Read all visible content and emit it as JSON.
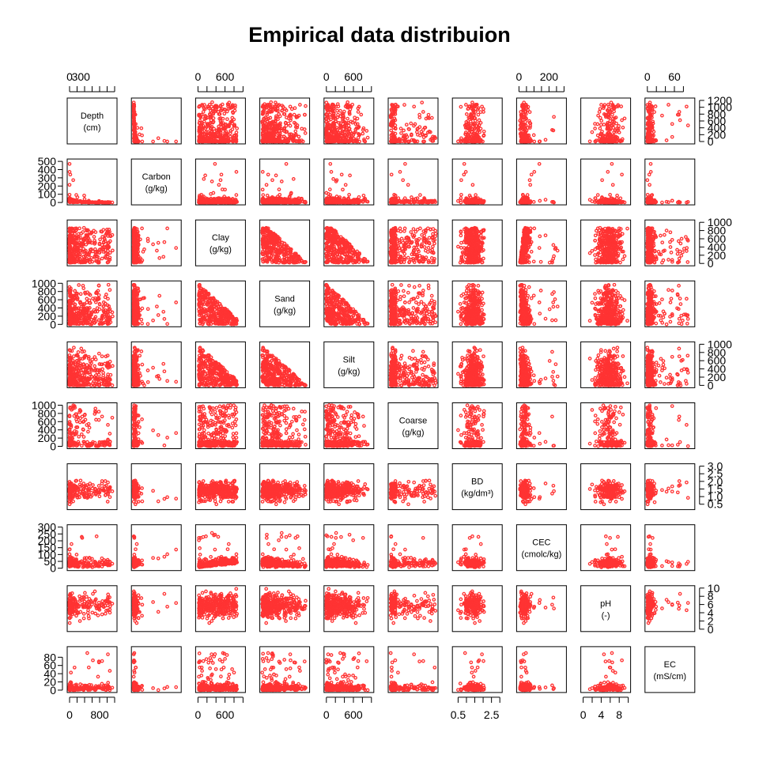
{
  "chart_data": {
    "type": "scatter",
    "title": "Empirical data distribuion",
    "point_color": "#FF3333",
    "variables": [
      {
        "name": "Depth",
        "unit": "(cm)",
        "range": [
          0,
          1200
        ],
        "ticks": [
          0,
          200,
          400,
          600,
          800,
          1000,
          1200
        ],
        "tick_labels_top": [
          "0",
          "300"
        ],
        "tick_values_top": [
          0,
          300
        ],
        "tick_labels_bottom": [
          "0",
          "800"
        ],
        "tick_values_bottom": [
          0,
          800
        ],
        "tick_labels_side": [
          "0",
          "200",
          "400",
          "600",
          "800",
          "1000",
          "1200"
        ]
      },
      {
        "name": "Carbon",
        "unit": "(g/kg)",
        "range": [
          0,
          500
        ],
        "ticks": [
          0,
          100,
          200,
          300,
          400,
          500
        ],
        "tick_labels_side": [
          "0",
          "100",
          "200",
          "300",
          "400",
          "500"
        ]
      },
      {
        "name": "Clay",
        "unit": "(g/kg)",
        "range": [
          0,
          1000
        ],
        "ticks": [
          0,
          200,
          400,
          600,
          800,
          1000
        ],
        "tick_labels_top": [
          "0",
          "600"
        ],
        "tick_values_top": [
          0,
          600
        ],
        "tick_labels_bottom": [
          "0",
          "600"
        ],
        "tick_values_bottom": [
          0,
          600
        ],
        "tick_labels_side": [
          "0",
          "200",
          "400",
          "600",
          "800",
          "1000"
        ]
      },
      {
        "name": "Sand",
        "unit": "(g/kg)",
        "range": [
          0,
          1000
        ],
        "ticks": [
          0,
          200,
          400,
          600,
          800,
          1000
        ],
        "tick_labels_side": [
          "0",
          "200",
          "400",
          "600",
          "800",
          "1000"
        ]
      },
      {
        "name": "Silt",
        "unit": "(g/kg)",
        "range": [
          0,
          1000
        ],
        "ticks": [
          0,
          200,
          400,
          600,
          800,
          1000
        ],
        "tick_labels_top": [
          "0",
          "600"
        ],
        "tick_values_top": [
          0,
          600
        ],
        "tick_labels_bottom": [
          "0",
          "600"
        ],
        "tick_values_bottom": [
          0,
          600
        ],
        "tick_labels_side": [
          "0",
          "200",
          "400",
          "600",
          "800",
          "1000"
        ]
      },
      {
        "name": "Coarse",
        "unit": "(g/kg)",
        "range": [
          0,
          1000
        ],
        "ticks": [
          0,
          200,
          400,
          600,
          800,
          1000
        ],
        "tick_labels_side": [
          "0",
          "200",
          "400",
          "600",
          "800",
          "1000"
        ]
      },
      {
        "name": "BD",
        "unit": "(kg/dm³)",
        "range": [
          0.3,
          3.0
        ],
        "ticks": [
          0.5,
          1.0,
          1.5,
          2.0,
          2.5,
          3.0
        ],
        "tick_labels_bottom": [
          "0.5",
          "2.5"
        ],
        "tick_values_bottom": [
          0.5,
          2.5
        ],
        "tick_labels_side": [
          "0.5",
          "1.0",
          "1.5",
          "2.0",
          "2.5",
          "3.0"
        ]
      },
      {
        "name": "CEC",
        "unit": "(cmolc/kg)",
        "range": [
          0,
          300
        ],
        "ticks": [
          0,
          50,
          100,
          150,
          200,
          250,
          300
        ],
        "tick_labels_top": [
          "0",
          "200"
        ],
        "tick_values_top": [
          0,
          200
        ],
        "tick_labels_side": [
          "0",
          "50",
          "100",
          "150",
          "200",
          "250",
          "300"
        ]
      },
      {
        "name": "pH",
        "unit": "(-)",
        "range": [
          0,
          10
        ],
        "ticks": [
          0,
          2,
          4,
          6,
          8,
          10
        ],
        "tick_labels_bottom": [
          "0",
          "4",
          "8"
        ],
        "tick_values_bottom": [
          0,
          4,
          8
        ],
        "tick_labels_side": [
          "0",
          "2",
          "4",
          "6",
          "8",
          "10"
        ]
      },
      {
        "name": "EC",
        "unit": "(mS/cm)",
        "range": [
          0,
          100
        ],
        "ticks": [
          0,
          20,
          40,
          60,
          80
        ],
        "tick_labels_top": [
          "0",
          "60"
        ],
        "tick_values_top": [
          0,
          60
        ],
        "tick_labels_side": [
          "0",
          "20",
          "40",
          "60",
          "80"
        ]
      }
    ]
  }
}
